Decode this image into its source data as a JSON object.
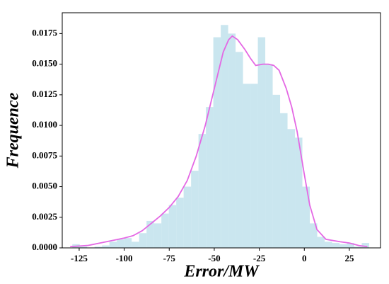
{
  "chart_data": {
    "type": "histogram",
    "xlabel": "Error/MW",
    "ylabel": "Frequence",
    "bins": [
      -128.8,
      -124.68,
      -120.56,
      -116.44,
      -112.32,
      -108.2,
      -104.08,
      -99.96,
      -95.84,
      -91.72,
      -87.6,
      -83.48,
      -79.36,
      -75.24,
      -71.12,
      -67.0,
      -62.88,
      -58.76,
      -54.64,
      -50.52,
      -46.4,
      -42.28,
      -38.16,
      -34.04,
      -29.92,
      -25.8,
      -21.68,
      -17.56,
      -13.44,
      -9.32,
      -5.2,
      -1.08,
      3.04,
      7.16,
      11.28,
      15.4,
      19.52,
      23.64,
      27.76,
      31.88,
      36.0
    ],
    "values": [
      0.0003,
      0.0001,
      0.0,
      0.0001,
      0.0002,
      0.0005,
      0.0007,
      0.0008,
      0.0005,
      0.0012,
      0.0022,
      0.002,
      0.0028,
      0.0035,
      0.0041,
      0.005,
      0.0063,
      0.0093,
      0.0115,
      0.0172,
      0.0182,
      0.0175,
      0.016,
      0.0134,
      0.0134,
      0.0172,
      0.015,
      0.0125,
      0.011,
      0.0097,
      0.009,
      0.005,
      0.002,
      0.0009,
      0.0005,
      0.0004,
      0.0003,
      0.0004,
      0.0001,
      0.0004
    ],
    "color": "#add8e6",
    "kde": {
      "color": "#e468e4",
      "x": [
        -130,
        -120,
        -110,
        -100,
        -95,
        -90,
        -85,
        -80,
        -75,
        -70,
        -65,
        -60,
        -55,
        -50,
        -45,
        -42,
        -40,
        -37,
        -33,
        -30,
        -27,
        -23,
        -20,
        -17,
        -14,
        -10,
        -7,
        -4,
        0,
        3,
        7,
        12,
        20,
        25,
        30,
        35
      ],
      "y": [
        0.0001,
        0.0002,
        0.0005,
        0.0008,
        0.001,
        0.0014,
        0.002,
        0.0026,
        0.0033,
        0.0042,
        0.0055,
        0.0075,
        0.01,
        0.013,
        0.016,
        0.017,
        0.0173,
        0.017,
        0.0162,
        0.0155,
        0.0149,
        0.015,
        0.015,
        0.0149,
        0.0145,
        0.013,
        0.0115,
        0.0095,
        0.006,
        0.0035,
        0.0015,
        0.0007,
        0.0005,
        0.0004,
        0.0002,
        0.0001
      ]
    },
    "xlim": [
      -134.4,
      42.3
    ],
    "ylim": [
      0,
      0.0192
    ],
    "xticks": [
      -125,
      -100,
      -75,
      -50,
      -25,
      0,
      25
    ],
    "yticks": [
      {
        "value": 0,
        "label": "0.0000"
      },
      {
        "value": 0.0025,
        "label": "0.0025"
      },
      {
        "value": 0.005,
        "label": "0.0050"
      },
      {
        "value": 0.0075,
        "label": "0.0075"
      },
      {
        "value": 0.01,
        "label": "0.0100"
      },
      {
        "value": 0.0125,
        "label": "0.0125"
      },
      {
        "value": 0.015,
        "label": "0.0150"
      },
      {
        "value": 0.0175,
        "label": "0.0175"
      }
    ]
  }
}
